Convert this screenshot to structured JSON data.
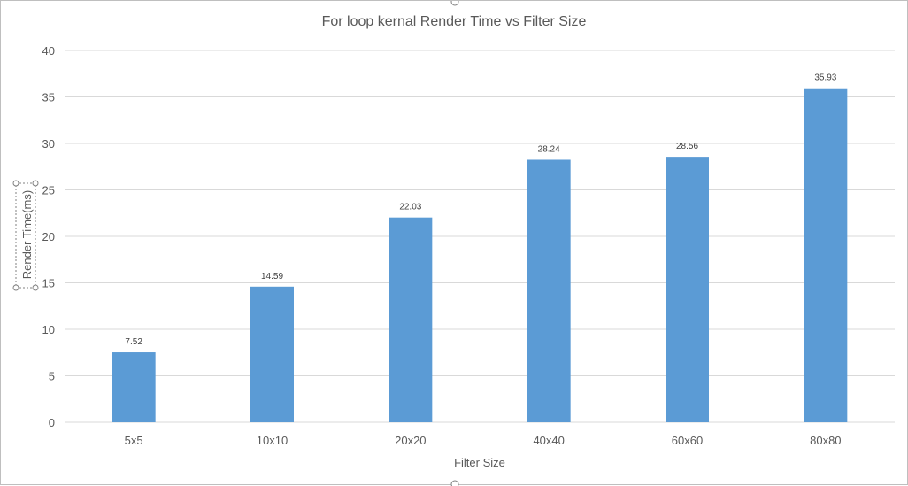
{
  "chart_data": {
    "type": "bar",
    "title": "For loop kernal Render Time vs Filter Size",
    "xlabel": "Filter Size",
    "ylabel": "Render Time(ms)",
    "categories": [
      "5x5",
      "10x10",
      "20x20",
      "40x40",
      "60x60",
      "80x80"
    ],
    "values": [
      7.52,
      14.59,
      22.03,
      28.24,
      28.56,
      35.93
    ],
    "data_labels": [
      "7.52",
      "14.59",
      "22.03",
      "28.24",
      "28.56",
      "35.93"
    ],
    "ylim": [
      0,
      40
    ],
    "yticks": [
      0,
      5,
      10,
      15,
      20,
      25,
      30,
      35,
      40
    ],
    "grid": true,
    "legend": "none",
    "bar_color": "#5b9bd5"
  }
}
